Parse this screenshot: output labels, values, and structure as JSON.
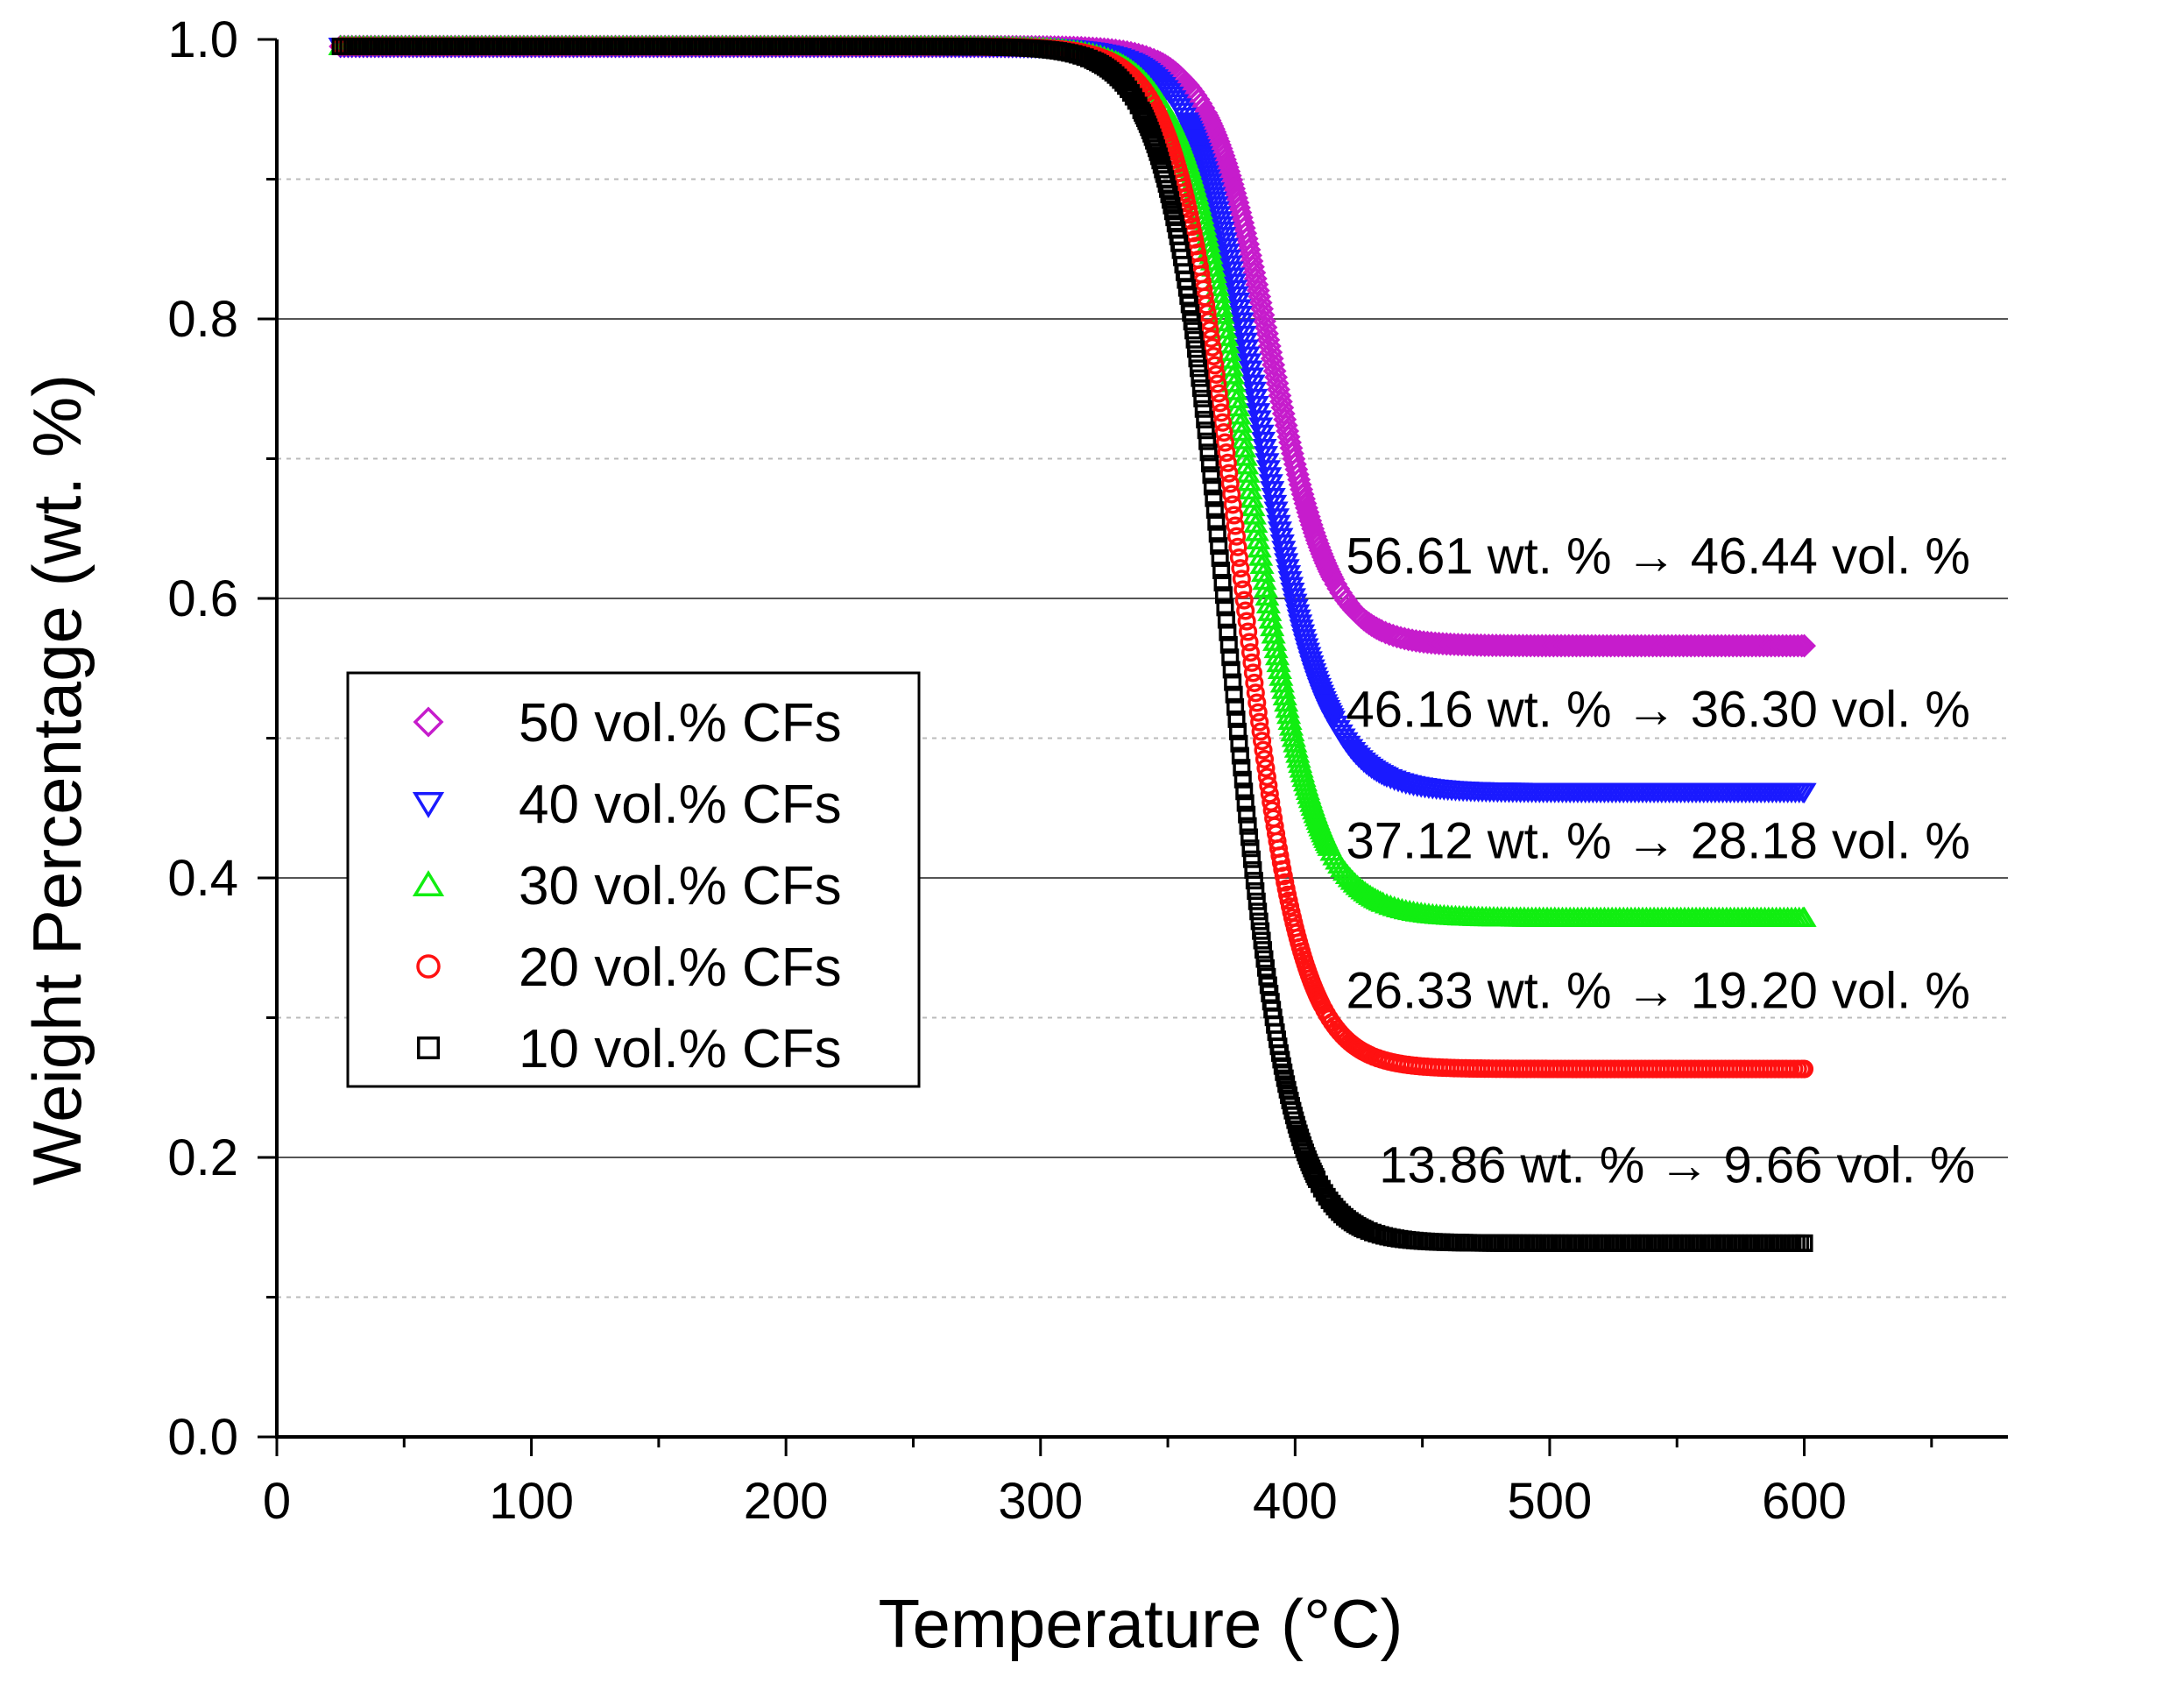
{
  "chart_data": {
    "type": "scatter",
    "title": "",
    "xlabel": "Temperature (°C)",
    "ylabel": "Weight Percentage (wt. %)",
    "xlim": [
      0,
      680
    ],
    "ylim": [
      0.0,
      1.0
    ],
    "x_ticks": [
      0,
      100,
      200,
      300,
      400,
      500,
      600
    ],
    "x_tick_labels": [
      "0",
      "100",
      "200",
      "300",
      "400",
      "500",
      "600"
    ],
    "y_ticks": [
      0.0,
      0.2,
      0.4,
      0.6,
      0.8,
      1.0
    ],
    "y_tick_labels": [
      "0.0",
      "0.2",
      "0.4",
      "0.6",
      "0.8",
      "1.0"
    ],
    "grid": "horizontal",
    "legend_position": "center-left",
    "series": [
      {
        "name": "50 vol.% CFs",
        "color": "#c61ccc",
        "marker": "diamond",
        "x_start": 25,
        "x_end": 600,
        "start_value": 0.995,
        "final_residue": 0.5661,
        "midpoint_temperature": 390,
        "transition_width": 12
      },
      {
        "name": "40 vol.% CFs",
        "color": "#1a1aff",
        "marker": "triangle-down",
        "x_start": 25,
        "x_end": 600,
        "start_value": 0.995,
        "final_residue": 0.4616,
        "midpoint_temperature": 386,
        "transition_width": 13
      },
      {
        "name": "30 vol.% CFs",
        "color": "#11ee11",
        "marker": "triangle-up",
        "x_start": 25,
        "x_end": 600,
        "start_value": 0.995,
        "final_residue": 0.3712,
        "midpoint_temperature": 382,
        "transition_width": 13
      },
      {
        "name": "20 vol.% CFs",
        "color": "#ff1111",
        "marker": "circle",
        "x_start": 25,
        "x_end": 600,
        "start_value": 0.995,
        "final_residue": 0.2633,
        "midpoint_temperature": 378,
        "transition_width": 12
      },
      {
        "name": "10 vol.% CFs",
        "color": "#000000",
        "marker": "square",
        "x_start": 25,
        "x_end": 600,
        "start_value": 0.995,
        "final_residue": 0.1386,
        "midpoint_temperature": 374,
        "transition_width": 12
      }
    ],
    "annotations": [
      {
        "text": "56.61 wt. % → 46.44 vol. %",
        "x": 420,
        "y": 0.618
      },
      {
        "text": "46.16 wt. % → 36.30 vol. %",
        "x": 420,
        "y": 0.508
      },
      {
        "text": "37.12 wt. % → 28.18 vol. %",
        "x": 420,
        "y": 0.414
      },
      {
        "text": "26.33 wt. % → 19.20 vol. %",
        "x": 420,
        "y": 0.307
      },
      {
        "text": "13.86 wt. % → 9.66 vol. %",
        "x": 433,
        "y": 0.182
      }
    ]
  }
}
